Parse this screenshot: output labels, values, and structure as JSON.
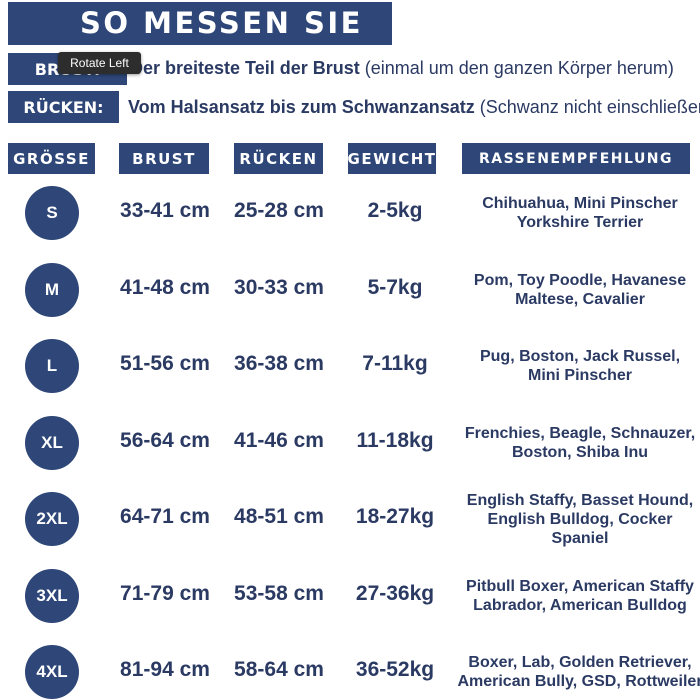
{
  "title": "SO MESSEN SIE",
  "measure": {
    "brust": {
      "label": "BRUST:",
      "bold": "Der breiteste Teil der Brust",
      "normal": " (einmal um den ganzen Körper herum)"
    },
    "ruecken": {
      "label": "RÜCKEN:",
      "bold": "Vom Halsansatz bis zum Schwanzansatz",
      "normal": " (Schwanz nicht einschließen)"
    }
  },
  "tooltip": "Rotate Left",
  "headers": {
    "size": "GRÖSSE",
    "brust": "BRUST",
    "ruecken": "RÜCKEN",
    "gewicht": "GEWICHT",
    "rasse": "RASSENEMPFEHLUNG"
  },
  "rows": [
    {
      "size": "S",
      "brust": "33-41 cm",
      "ruecken": "25-28 cm",
      "gewicht": "2-5kg",
      "breeds": [
        "Chihuahua, Mini Pinscher",
        "Yorkshire Terrier"
      ]
    },
    {
      "size": "M",
      "brust": "41-48 cm",
      "ruecken": "30-33 cm",
      "gewicht": "5-7kg",
      "breeds": [
        "Pom, Toy Poodle, Havanese",
        "Maltese, Cavalier"
      ]
    },
    {
      "size": "L",
      "brust": "51-56 cm",
      "ruecken": "36-38 cm",
      "gewicht": "7-11kg",
      "breeds": [
        "Pug, Boston, Jack Russel,",
        "Mini Pinscher"
      ]
    },
    {
      "size": "XL",
      "brust": "56-64 cm",
      "ruecken": "41-46 cm",
      "gewicht": "11-18kg",
      "breeds": [
        "Frenchies, Beagle, Schnauzer,",
        "Boston, Shiba Inu"
      ]
    },
    {
      "size": "2XL",
      "brust": "64-71 cm",
      "ruecken": "48-51 cm",
      "gewicht": "18-27kg",
      "breeds": [
        "English Staffy, Basset Hound,",
        "English Bulldog, Cocker",
        "Spaniel"
      ]
    },
    {
      "size": "3XL",
      "brust": "71-79 cm",
      "ruecken": "53-58 cm",
      "gewicht": "27-36kg",
      "breeds": [
        "Pitbull Boxer, American Staffy",
        "Labrador, American Bulldog"
      ]
    },
    {
      "size": "4XL",
      "brust": "81-94 cm",
      "ruecken": "58-64 cm",
      "gewicht": "36-52kg",
      "breeds": [
        "Boxer, Lab, Golden Retriever,",
        "American Bully, GSD, Rottweiler"
      ]
    }
  ]
}
